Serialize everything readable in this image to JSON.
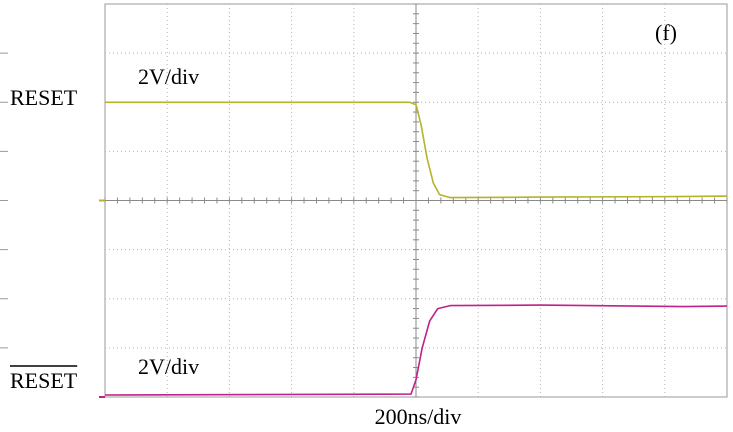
{
  "chart_data": {
    "type": "line",
    "panel_label": "(f)",
    "xlabel": "200ns/div",
    "x_divisions": 10,
    "y_divisions": 8,
    "grid": true,
    "series": [
      {
        "name": "RESET",
        "overbar": false,
        "scale_label": "2V/div",
        "color": "#b5b327",
        "baseline_div": 4,
        "points": [
          [
            0,
            6.0
          ],
          [
            4.9,
            6.0
          ],
          [
            5.0,
            5.95
          ],
          [
            5.08,
            5.55
          ],
          [
            5.18,
            4.85
          ],
          [
            5.28,
            4.35
          ],
          [
            5.38,
            4.12
          ],
          [
            5.55,
            4.06
          ],
          [
            7.0,
            4.07
          ],
          [
            9.2,
            4.08
          ],
          [
            10,
            4.09
          ]
        ]
      },
      {
        "name": "RESET",
        "overbar": true,
        "scale_label": "2V/div",
        "color": "#c0208a",
        "baseline_div": 0,
        "points": [
          [
            0,
            0.04
          ],
          [
            4.92,
            0.06
          ],
          [
            5.0,
            0.35
          ],
          [
            5.1,
            1.0
          ],
          [
            5.22,
            1.55
          ],
          [
            5.35,
            1.8
          ],
          [
            5.55,
            1.86
          ],
          [
            7.0,
            1.87
          ],
          [
            9.3,
            1.84
          ],
          [
            10,
            1.85
          ]
        ]
      }
    ]
  }
}
